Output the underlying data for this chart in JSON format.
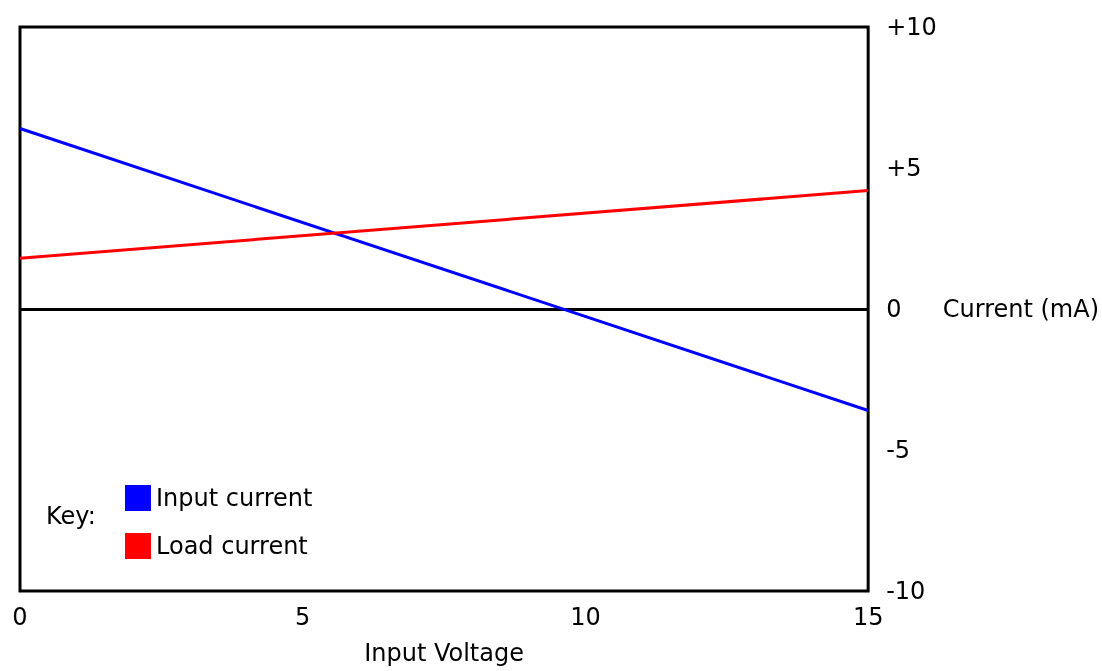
{
  "chart_data": {
    "type": "line",
    "xlabel": "Input Voltage",
    "ylabel": "Current (mA)",
    "legend_title": "Key:",
    "x": [
      0,
      15
    ],
    "series": [
      {
        "name": "Input current",
        "color": "#0000ff",
        "values": [
          6.4,
          -3.6
        ]
      },
      {
        "name": "Load current",
        "color": "#ff0000",
        "values": [
          1.8,
          4.2
        ]
      }
    ],
    "xlim": [
      0,
      15
    ],
    "xticks": [
      0,
      5,
      10,
      15
    ],
    "ylim": [
      -10,
      10
    ],
    "yticks": [
      {
        "value": 10,
        "label": "+10"
      },
      {
        "value": 5,
        "label": "+5"
      },
      0,
      -5,
      -10
    ],
    "ref_lines": [
      {
        "axis": "y",
        "value": 0,
        "color": "#000000"
      }
    ],
    "grid": false,
    "legend": "bottom left",
    "marker": "none",
    "line_style": "solid"
  }
}
